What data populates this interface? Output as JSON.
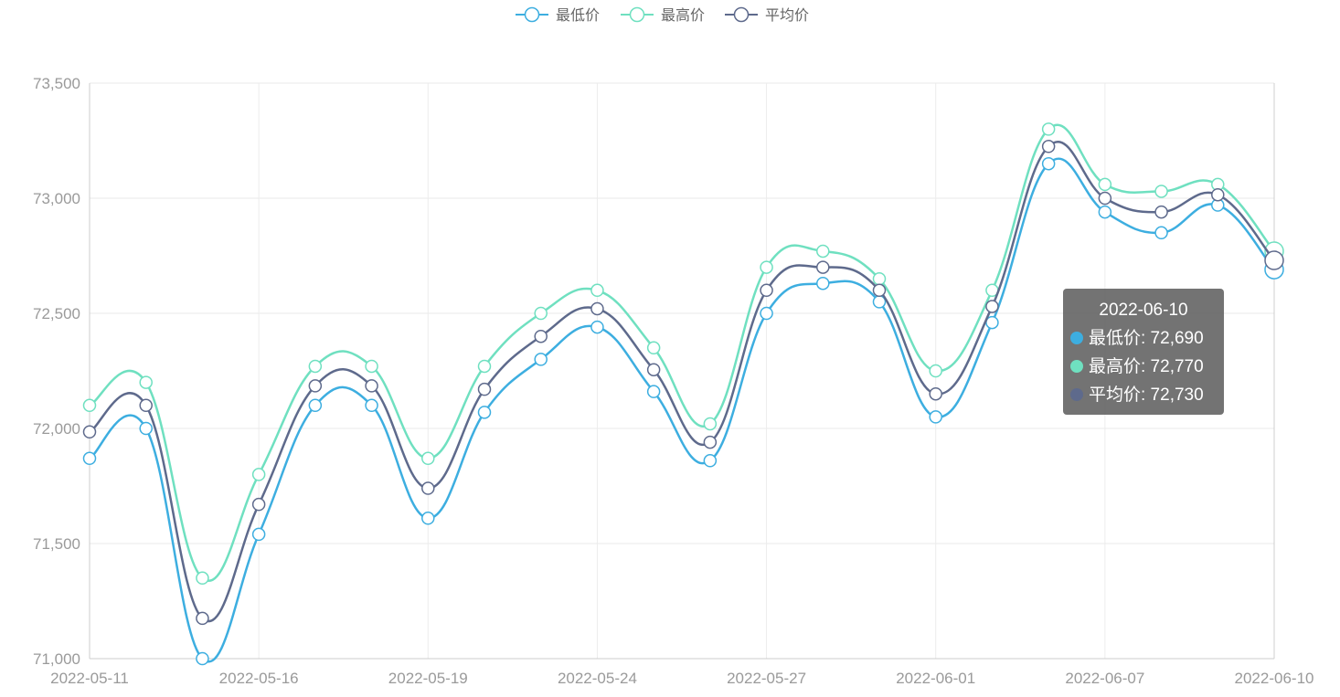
{
  "chart_data": {
    "type": "line",
    "title": "",
    "xlabel": "",
    "ylabel": "",
    "smooth": true,
    "grid": true,
    "legend_position": "top-center",
    "ylim": [
      71000,
      73500
    ],
    "yticks": [
      71000,
      71500,
      72000,
      72500,
      73000,
      73500
    ],
    "ytick_labels": [
      "71,000",
      "71,500",
      "72,000",
      "72,500",
      "73,000",
      "73,500"
    ],
    "x": [
      "2022-05-11",
      "2022-05-12",
      "2022-05-13",
      "2022-05-16",
      "2022-05-17",
      "2022-05-18",
      "2022-05-19",
      "2022-05-20",
      "2022-05-23",
      "2022-05-24",
      "2022-05-25",
      "2022-05-26",
      "2022-05-27",
      "2022-05-30",
      "2022-05-31",
      "2022-06-01",
      "2022-06-02",
      "2022-06-06",
      "2022-06-07",
      "2022-06-08",
      "2022-06-09",
      "2022-06-10"
    ],
    "xtick_labels": [
      "2022-05-11",
      "2022-05-16",
      "2022-05-19",
      "2022-05-24",
      "2022-05-27",
      "2022-06-01",
      "2022-06-07",
      "2022-06-10"
    ],
    "series": [
      {
        "name": "最低价",
        "color": "#3daee0",
        "values": [
          71870,
          72000,
          71000,
          71540,
          72100,
          72100,
          71610,
          72070,
          72300,
          72440,
          72160,
          71860,
          72500,
          72630,
          72550,
          72050,
          72460,
          73150,
          72940,
          72850,
          72970,
          72690
        ]
      },
      {
        "name": "最高价",
        "color": "#6fe0c0",
        "values": [
          72100,
          72200,
          71350,
          71800,
          72270,
          72270,
          71870,
          72270,
          72500,
          72600,
          72350,
          72020,
          72700,
          72770,
          72650,
          72250,
          72600,
          73300,
          73060,
          73030,
          73060,
          72770
        ]
      },
      {
        "name": "平均价",
        "color": "#5e6a8c",
        "values": [
          71985,
          72100,
          71175,
          71670,
          72185,
          72185,
          71740,
          72170,
          72400,
          72520,
          72255,
          71940,
          72600,
          72700,
          72600,
          72150,
          72530,
          73225,
          73000,
          72940,
          73015,
          72730
        ]
      }
    ]
  },
  "tooltip": {
    "title": "2022-06-10",
    "rows": [
      {
        "label": "最低价: 72,690",
        "color": "#3daee0"
      },
      {
        "label": "最高价: 72,770",
        "color": "#6fe0c0"
      },
      {
        "label": "平均价: 72,730",
        "color": "#5e6a8c"
      }
    ]
  }
}
